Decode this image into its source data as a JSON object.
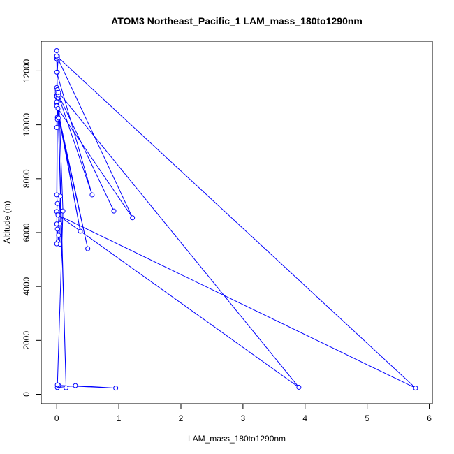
{
  "chart_data": {
    "type": "line",
    "title": "ATOM3 Northeast_Pacific_1 LAM_mass_180to1290nm",
    "xlabel": "LAM_mass_180to1290nm",
    "ylabel": "Altitude (m)",
    "xlim": [
      -0.25,
      6.05
    ],
    "ylim": [
      -350,
      13100
    ],
    "xticks": [
      0,
      1,
      2,
      3,
      4,
      5,
      6
    ],
    "yticks": [
      0,
      2000,
      4000,
      6000,
      8000,
      10000,
      12000
    ],
    "xtick_labels": [
      "0",
      "1",
      "2",
      "3",
      "4",
      "5",
      "6"
    ],
    "ytick_labels": [
      "0",
      "2000",
      "4000",
      "6000",
      "8000",
      "10000",
      "12000"
    ],
    "grid": false,
    "series": [
      {
        "color": "#0000ff",
        "marker": "open-circle",
        "x": [
          0.0,
          0.01,
          0.0,
          0.02,
          0.01,
          0.0,
          0.01,
          0.02,
          0.0,
          0.01,
          0.0,
          0.01,
          0.02,
          0.0,
          0.01,
          0.0,
          0.02,
          0.01,
          0.0,
          0.01,
          0.0,
          0.02,
          0.05,
          0.0,
          0.01,
          0.03,
          0.02,
          0.05,
          0.06,
          0.0,
          0.01,
          0.02,
          0.01,
          0.0,
          0.01,
          0.0,
          0.57,
          0.01,
          0.92,
          0.03,
          0.0,
          0.38,
          0.0,
          0.5,
          0.03,
          0.15,
          0.02,
          1.22,
          0.0,
          5.78,
          0.02,
          3.9,
          0.03,
          0.1,
          0.01,
          0.3,
          0.95,
          0.03,
          0.01
        ],
        "y": [
          12750,
          12550,
          12450,
          12400,
          11950,
          11380,
          11300,
          11200,
          11100,
          11000,
          10800,
          10280,
          10250,
          9900,
          10850,
          11050,
          11150,
          11300,
          7400,
          7080,
          6780,
          6680,
          6330,
          6320,
          6130,
          5900,
          5650,
          5570,
          7350,
          5580,
          10200,
          11000,
          11300,
          12450,
          12500,
          11950,
          7400,
          11200,
          6800,
          11100,
          10850,
          6050,
          10700,
          5400,
          10250,
          240,
          10600,
          6550,
          12550,
          230,
          6650,
          260,
          11200,
          6800,
          250,
          320,
          230,
          330,
          350
        ]
      }
    ]
  }
}
